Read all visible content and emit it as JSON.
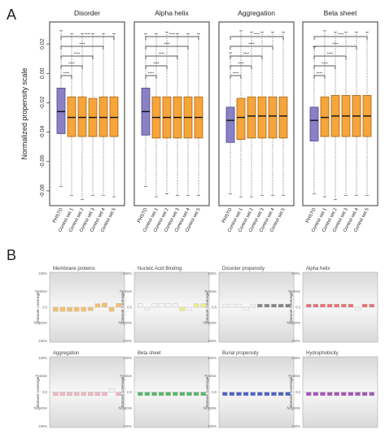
{
  "figure": {
    "panel_a_letter": "A",
    "panel_b_letter": "B"
  },
  "colors": {
    "photo_fill": "#8c80c4",
    "photo_stroke": "#4e4693",
    "control_fill": "#f6a53b",
    "control_stroke": "#a86414",
    "membrane_bar": "#f5bf6e",
    "nucleic_bar": "#eeee88",
    "disorder_bar": "#808080",
    "alpha_bar": "#e87070",
    "aggregation_bar": "#f0b6c2",
    "beta_bar": "#55b868",
    "burial_bar": "#4a63c4",
    "hydro_bar": "#a653b8",
    "blank_bar": "#f4f4f4"
  },
  "chart_data": [
    {
      "type": "box",
      "panel": "A",
      "ylabel": "Normalized propensity scale",
      "ylim": [
        -0.09,
        0.035
      ],
      "yticks": [
        0.02,
        0.0,
        -0.02,
        -0.04,
        -0.06,
        -0.08
      ],
      "ytick_labels": [
        "0.02",
        "0.00",
        "-0.02",
        "-0.04",
        "-0.06",
        "-0.08"
      ],
      "categories": [
        "PHSTO",
        "Control set 1",
        "Control set 2",
        "Control set 3",
        "Control set 4",
        "Control set 5"
      ],
      "significance_label": "****",
      "facets": [
        {
          "title": "Disorder",
          "boxes": [
            {
              "whislo": -0.077,
              "q1": -0.041,
              "med": -0.026,
              "q3": -0.01,
              "whishi": 0.029
            },
            {
              "whislo": -0.083,
              "q1": -0.043,
              "med": -0.03,
              "q3": -0.016,
              "whishi": 0.027
            },
            {
              "whislo": -0.086,
              "q1": -0.043,
              "med": -0.03,
              "q3": -0.016,
              "whishi": 0.027
            },
            {
              "whislo": -0.083,
              "q1": -0.043,
              "med": -0.03,
              "q3": -0.017,
              "whishi": 0.027
            },
            {
              "whislo": -0.083,
              "q1": -0.043,
              "med": -0.03,
              "q3": -0.016,
              "whishi": 0.027
            },
            {
              "whislo": -0.084,
              "q1": -0.043,
              "med": -0.03,
              "q3": -0.016,
              "whishi": 0.027
            }
          ]
        },
        {
          "title": "Alpha helix",
          "boxes": [
            {
              "whislo": -0.077,
              "q1": -0.042,
              "med": -0.026,
              "q3": -0.01,
              "whishi": 0.027
            },
            {
              "whislo": -0.084,
              "q1": -0.044,
              "med": -0.03,
              "q3": -0.016,
              "whishi": 0.027
            },
            {
              "whislo": -0.082,
              "q1": -0.044,
              "med": -0.03,
              "q3": -0.016,
              "whishi": 0.028
            },
            {
              "whislo": -0.083,
              "q1": -0.044,
              "med": -0.03,
              "q3": -0.016,
              "whishi": 0.027
            },
            {
              "whislo": -0.083,
              "q1": -0.044,
              "med": -0.03,
              "q3": -0.016,
              "whishi": 0.027
            },
            {
              "whislo": -0.083,
              "q1": -0.044,
              "med": -0.03,
              "q3": -0.016,
              "whishi": 0.027
            }
          ]
        },
        {
          "title": "Aggregation",
          "boxes": [
            {
              "whislo": -0.082,
              "q1": -0.047,
              "med": -0.032,
              "q3": -0.023,
              "whishi": 0.014
            },
            {
              "whislo": -0.084,
              "q1": -0.045,
              "med": -0.03,
              "q3": -0.017,
              "whishi": 0.029
            },
            {
              "whislo": -0.084,
              "q1": -0.044,
              "med": -0.029,
              "q3": -0.016,
              "whishi": 0.028
            },
            {
              "whislo": -0.083,
              "q1": -0.044,
              "med": -0.029,
              "q3": -0.016,
              "whishi": 0.028
            },
            {
              "whislo": -0.083,
              "q1": -0.044,
              "med": -0.029,
              "q3": -0.016,
              "whishi": 0.028
            },
            {
              "whislo": -0.083,
              "q1": -0.044,
              "med": -0.029,
              "q3": -0.016,
              "whishi": 0.028
            }
          ]
        },
        {
          "title": "Beta sheet",
          "boxes": [
            {
              "whislo": -0.082,
              "q1": -0.046,
              "med": -0.032,
              "q3": -0.023,
              "whishi": 0.018
            },
            {
              "whislo": -0.084,
              "q1": -0.043,
              "med": -0.03,
              "q3": -0.016,
              "whishi": 0.029
            },
            {
              "whislo": -0.086,
              "q1": -0.043,
              "med": -0.029,
              "q3": -0.015,
              "whishi": 0.028
            },
            {
              "whislo": -0.083,
              "q1": -0.043,
              "med": -0.029,
              "q3": -0.015,
              "whishi": 0.028
            },
            {
              "whislo": -0.083,
              "q1": -0.043,
              "med": -0.029,
              "q3": -0.015,
              "whishi": 0.028
            },
            {
              "whislo": -0.083,
              "q1": -0.043,
              "med": -0.029,
              "q3": -0.015,
              "whishi": 0.028
            }
          ]
        }
      ]
    },
    {
      "type": "bar",
      "panel": "B",
      "ylabel": "Dataset coverage",
      "ylim": [
        -100,
        100
      ],
      "tick_labels": {
        "top": "100%",
        "positive": "Positive",
        "zero": "0.0",
        "negative": "Negative",
        "bottom": "100%"
      },
      "facets": [
        {
          "title": "Membrane proteins",
          "color_key": "membrane_bar",
          "colored": [
            true,
            true,
            true,
            true,
            true,
            true,
            true,
            true,
            true,
            true
          ],
          "values": [
            -12,
            -12,
            -12,
            -12,
            -12,
            -10,
            10,
            12,
            -12,
            11
          ]
        },
        {
          "title": "Nucleic Acid Binding",
          "color_key": "nucleic_bar",
          "colored": [
            false,
            false,
            false,
            false,
            false,
            false,
            true,
            false,
            true,
            true
          ],
          "values": [
            10,
            -8,
            10,
            10,
            10,
            10,
            -10,
            -9,
            10,
            10
          ]
        },
        {
          "title": "Disorder propensity",
          "color_key": "disorder_bar",
          "colored": [
            false,
            false,
            false,
            false,
            false,
            true,
            true,
            true,
            true,
            true
          ],
          "values": [
            9,
            9,
            9,
            -9,
            9,
            9,
            9,
            9,
            9,
            9
          ]
        },
        {
          "title": "Alpha helix",
          "color_key": "alpha_bar",
          "colored": [
            true,
            true,
            true,
            true,
            true,
            true,
            true,
            false,
            true,
            true
          ],
          "values": [
            9,
            9,
            9,
            9,
            9,
            9,
            9,
            -9,
            9,
            9
          ]
        },
        {
          "title": "Aggregation",
          "color_key": "aggregation_bar",
          "colored": [
            true,
            true,
            true,
            true,
            true,
            true,
            true,
            true,
            false,
            true
          ],
          "values": [
            -10,
            -10,
            -10,
            -10,
            -10,
            -10,
            -10,
            -10,
            10,
            -10
          ]
        },
        {
          "title": "Beta sheet",
          "color_key": "beta_bar",
          "colored": [
            true,
            true,
            true,
            true,
            true,
            true,
            true,
            true,
            true,
            true
          ],
          "values": [
            -10,
            -10,
            -10,
            -10,
            -10,
            -10,
            -10,
            -10,
            -10,
            -10
          ]
        },
        {
          "title": "Burial propensity",
          "color_key": "burial_bar",
          "colored": [
            true,
            true,
            true,
            true,
            true,
            true,
            true,
            true,
            true,
            true
          ],
          "values": [
            -10,
            -10,
            -10,
            -10,
            -10,
            -10,
            -10,
            -10,
            -10,
            -10
          ]
        },
        {
          "title": "Hydrophobicity",
          "color_key": "hydro_bar",
          "colored": [
            true,
            true,
            true,
            true,
            true,
            true,
            true,
            true,
            true,
            true
          ],
          "values": [
            -10,
            -10,
            -10,
            -10,
            -10,
            -10,
            -10,
            -10,
            -10,
            -10
          ]
        }
      ]
    }
  ]
}
